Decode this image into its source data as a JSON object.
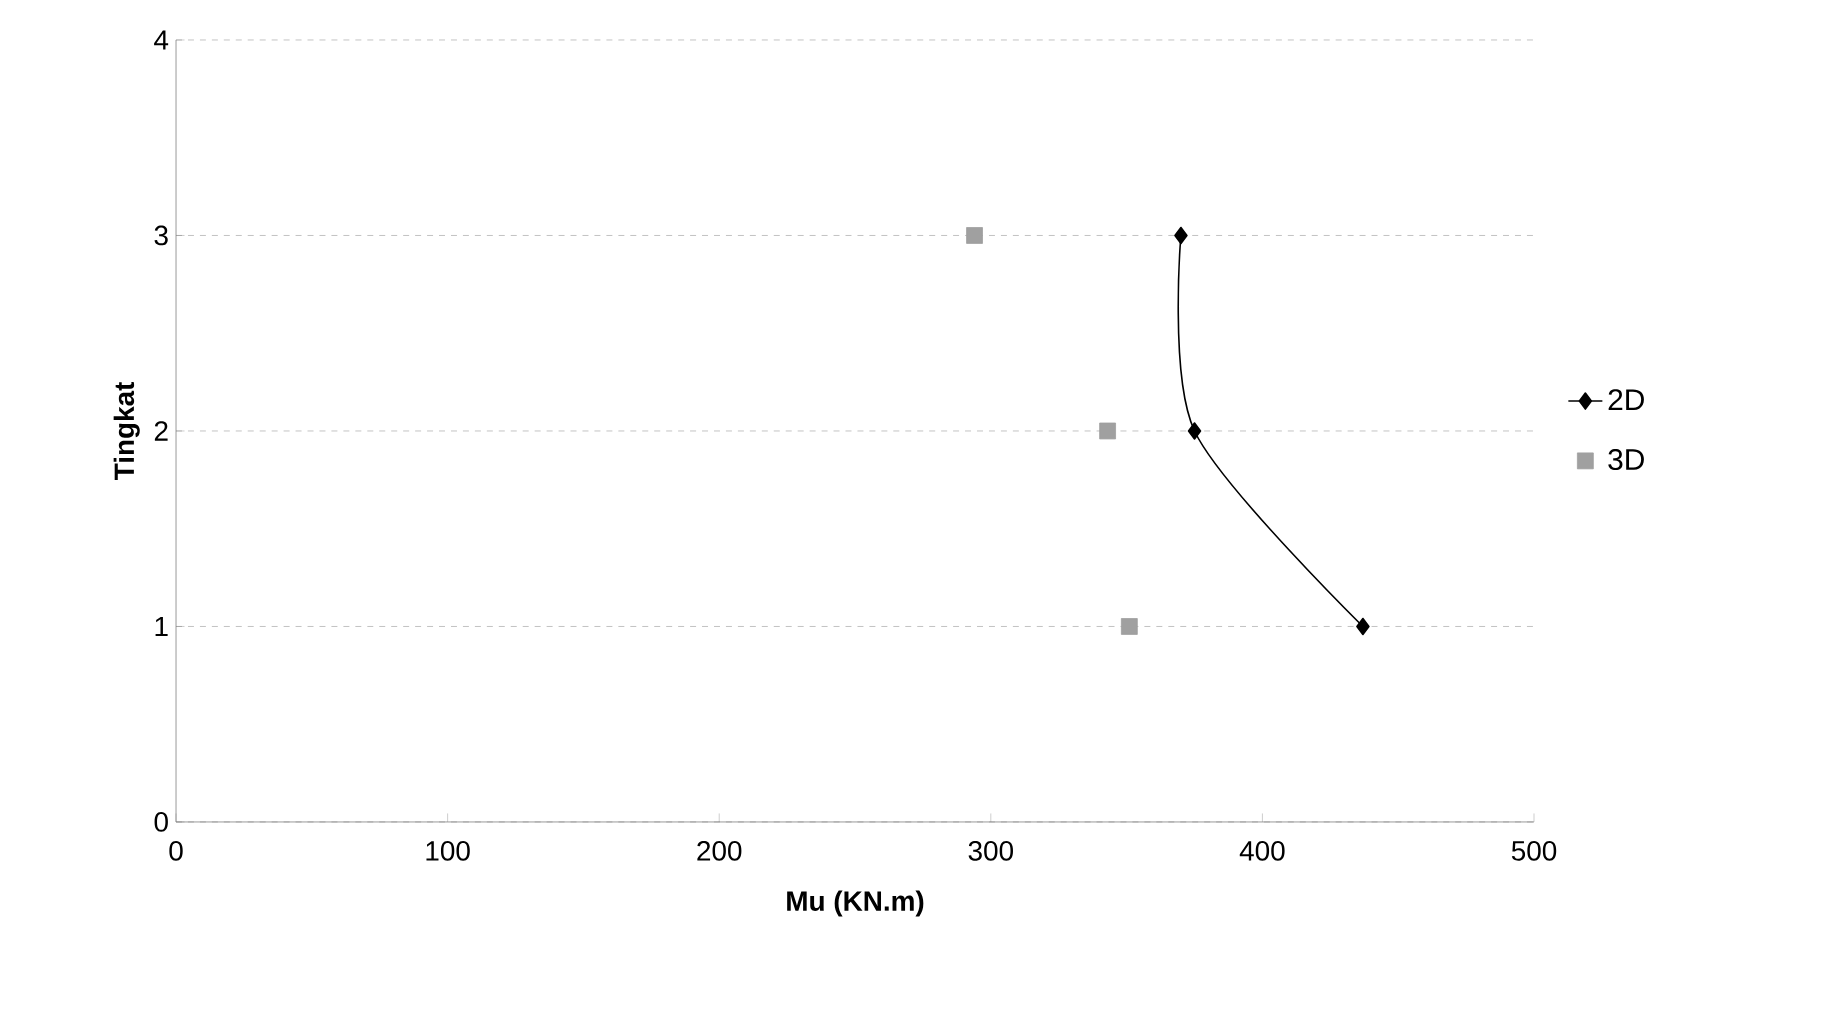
{
  "chart_data": {
    "type": "line",
    "xlabel": "Mu (KN.m)",
    "ylabel": "Tingkat",
    "xlim": [
      0,
      500
    ],
    "ylim": [
      0,
      4
    ],
    "xticks": [
      0,
      100,
      200,
      300,
      400,
      500
    ],
    "yticks": [
      0,
      1,
      2,
      3,
      4
    ],
    "grid": "y",
    "legend": "right",
    "series": [
      {
        "name": "2D",
        "color": "#000000",
        "marker": "diamond",
        "x": [
          370,
          375,
          437
        ],
        "values": [
          3,
          2,
          1
        ]
      },
      {
        "name": "3D",
        "type": "scatter",
        "color": "#a0a0a0",
        "marker": "square",
        "x": [
          294,
          343,
          351
        ],
        "values": [
          3,
          2,
          1
        ]
      }
    ]
  }
}
